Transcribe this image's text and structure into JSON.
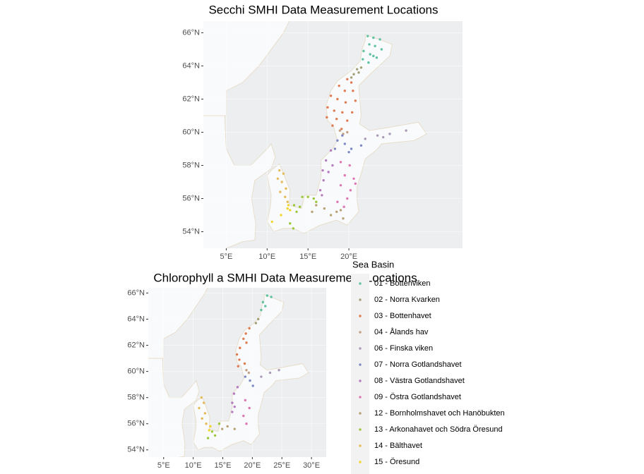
{
  "chart_data": [
    {
      "type": "map",
      "title": "Secchi SMHI Data Measurement Locations",
      "legend_title": "Sea Basin",
      "xlim": [
        2.2,
        33.9
      ],
      "ylim": [
        53.0,
        66.7
      ],
      "xticks": [
        {
          "value": 5,
          "label": "5°E"
        },
        {
          "value": 10,
          "label": "10°E"
        },
        {
          "value": 15,
          "label": "15°E"
        },
        {
          "value": 20,
          "label": "20°E"
        }
      ],
      "yticks": [
        {
          "value": 54,
          "label": "54°N"
        },
        {
          "value": 56,
          "label": "56°N"
        },
        {
          "value": 58,
          "label": "58°N"
        },
        {
          "value": 60,
          "label": "60°N"
        },
        {
          "value": 62,
          "label": "62°N"
        },
        {
          "value": 64,
          "label": "64°N"
        },
        {
          "value": 66,
          "label": "66°N"
        }
      ],
      "series": [
        {
          "name": "01 - Bottenviken",
          "color": "#5fc2a0",
          "x": [
            22.3,
            23.0,
            23.8,
            22.5,
            23.2,
            24.0,
            21.8,
            22.6,
            23.4,
            21.7,
            22.4,
            23.0
          ],
          "y": [
            65.8,
            65.7,
            65.6,
            65.3,
            65.2,
            65.0,
            64.9,
            64.7,
            64.5,
            64.4,
            64.2,
            64.6
          ]
        },
        {
          "name": "02 - Norra Kvarken",
          "color": "#a39f78",
          "x": [
            21.0,
            21.5,
            20.6,
            21.2,
            20.3
          ],
          "y": [
            63.8,
            63.9,
            63.5,
            63.6,
            63.3
          ]
        },
        {
          "name": "03 - Bottenhavet",
          "color": "#e07b52",
          "x": [
            19.8,
            20.3,
            18.8,
            19.5,
            20.5,
            17.8,
            18.6,
            19.6,
            20.8,
            17.4,
            18.2,
            19.2,
            20.4,
            17.3,
            18.5,
            19.8,
            18.0,
            19.1
          ],
          "y": [
            63.2,
            63.0,
            62.8,
            62.5,
            62.5,
            62.2,
            62.0,
            61.8,
            61.9,
            61.5,
            61.3,
            61.2,
            61.2,
            60.9,
            60.8,
            60.7,
            60.4,
            60.2
          ]
        },
        {
          "name": "04 - Ålands hav",
          "color": "#c4a082",
          "x": [
            19.3,
            19.8,
            18.9
          ],
          "y": [
            59.9,
            60.0,
            60.1
          ]
        },
        {
          "name": "06 - Finska viken",
          "color": "#a99ab8",
          "x": [
            22.0,
            23.5,
            25.0,
            27.0,
            24.2
          ],
          "y": [
            59.6,
            59.8,
            59.9,
            60.1,
            59.7
          ]
        },
        {
          "name": "07 - Norra Gotlandshavet",
          "color": "#7f88c4",
          "x": [
            18.6,
            19.2,
            19.5,
            20.3,
            21.5,
            18.3,
            20.0
          ],
          "y": [
            59.5,
            59.8,
            59.3,
            59.0,
            59.2,
            59.0,
            58.8
          ]
        },
        {
          "name": "08 - Västra Gotlandshavet",
          "color": "#b67cc0",
          "x": [
            17.8,
            17.2,
            16.8,
            16.9,
            16.5,
            17.5,
            18.0,
            16.7
          ],
          "y": [
            58.9,
            58.3,
            57.7,
            57.1,
            56.5,
            57.6,
            58.0,
            56.2
          ]
        },
        {
          "name": "09 - Östra Gotlandshavet",
          "color": "#de78b4",
          "x": [
            19.0,
            20.1,
            19.5,
            20.6,
            19.0,
            20.2,
            19.8,
            18.6,
            20.8,
            19.4
          ],
          "y": [
            58.2,
            58.0,
            57.4,
            57.2,
            56.8,
            56.5,
            56.0,
            55.8,
            56.9,
            55.5
          ]
        },
        {
          "name": "12 - Bornholmshavet och Hanöbukten",
          "color": "#b9a276",
          "x": [
            16.0,
            17.0,
            15.5,
            18.5,
            19.3,
            17.8,
            19.0
          ],
          "y": [
            55.6,
            55.4,
            55.2,
            55.2,
            54.8,
            55.0,
            55.3
          ]
        },
        {
          "name": "13 - Arkonahavet och Södra Öresund",
          "color": "#9dc83c",
          "x": [
            14.3,
            15.0,
            13.3,
            14.0,
            15.7,
            13.6,
            16.0,
            12.8,
            13.2
          ],
          "y": [
            56.1,
            56.1,
            55.6,
            55.5,
            56.0,
            55.2,
            55.8,
            54.5,
            54.2
          ]
        },
        {
          "name": "14 - Bälthavet",
          "color": "#e4bb58",
          "x": [
            11.5,
            12.0,
            11.3,
            11.8,
            12.3,
            11.6,
            12.2,
            12.5
          ],
          "y": [
            57.7,
            57.5,
            57.2,
            57.0,
            56.6,
            56.4,
            56.1,
            55.8
          ]
        },
        {
          "name": "15 - Öresund",
          "color": "#f2d630",
          "x": [
            12.6,
            12.8,
            12.5,
            10.6,
            11.7
          ],
          "y": [
            55.6,
            55.3,
            55.4,
            54.6,
            55.0
          ]
        }
      ]
    },
    {
      "type": "map",
      "title": "Chlorophyll a SMHI Data Measurement Locations",
      "xlim": [
        2.4,
        32.5
      ],
      "ylim": [
        53.45,
        66.4
      ],
      "xticks": [
        {
          "value": 5,
          "label": "5°E"
        },
        {
          "value": 10,
          "label": "10°E"
        },
        {
          "value": 15,
          "label": "15°E"
        },
        {
          "value": 20,
          "label": "20°E"
        },
        {
          "value": 25,
          "label": "25°E"
        },
        {
          "value": 30,
          "label": "30°E"
        }
      ],
      "yticks": [
        {
          "value": 54,
          "label": "54°N"
        },
        {
          "value": 56,
          "label": "56°N"
        },
        {
          "value": 58,
          "label": "58°N"
        },
        {
          "value": 60,
          "label": "60°N"
        },
        {
          "value": 62,
          "label": "62°N"
        },
        {
          "value": 64,
          "label": "64°N"
        },
        {
          "value": 66,
          "label": "66°N"
        }
      ],
      "series": [
        {
          "x": [
            22.5,
            23.2,
            21.8,
            22.2,
            21.5
          ],
          "y": [
            65.8,
            65.7,
            65.3,
            65.0,
            64.7
          ]
        },
        {
          "x": [
            21.0,
            20.6
          ],
          "y": [
            64.0,
            63.7
          ]
        },
        {
          "x": [
            19.5,
            18.9,
            18.5,
            19.0,
            17.9,
            17.4,
            17.8,
            18.7,
            17.6
          ],
          "y": [
            63.3,
            62.9,
            62.5,
            62.2,
            61.8,
            61.3,
            60.9,
            60.6,
            60.4
          ]
        },
        {
          "x": [
            19.0,
            19.4
          ],
          "y": [
            60.1,
            59.9
          ]
        },
        {
          "x": [
            21.5,
            23.0,
            24.5
          ],
          "y": [
            59.6,
            59.9,
            60.1
          ]
        },
        {
          "x": [
            18.8,
            19.6,
            20.1
          ],
          "y": [
            59.6,
            59.3,
            58.9
          ]
        },
        {
          "x": [
            17.5,
            16.9,
            16.6,
            16.6,
            17.0
          ],
          "y": [
            58.8,
            58.3,
            57.6,
            56.9,
            57.3
          ]
        },
        {
          "x": [
            18.8,
            19.5,
            18.5,
            19.0
          ],
          "y": [
            57.8,
            57.2,
            56.6,
            56.0
          ]
        },
        {
          "x": [
            15.8,
            17.0,
            14.9
          ],
          "y": [
            55.8,
            55.6,
            55.6
          ]
        },
        {
          "x": [
            14.4,
            13.2,
            13.7,
            12.5
          ],
          "y": [
            56.0,
            55.4,
            55.1,
            54.9
          ]
        },
        {
          "x": [
            11.4,
            11.8,
            11.0,
            12.0,
            11.5,
            12.2
          ],
          "y": [
            58.0,
            57.6,
            57.2,
            56.8,
            56.4,
            56.0
          ]
        },
        {
          "x": [
            12.7,
            12.9
          ],
          "y": [
            55.5,
            55.8
          ]
        }
      ]
    }
  ]
}
